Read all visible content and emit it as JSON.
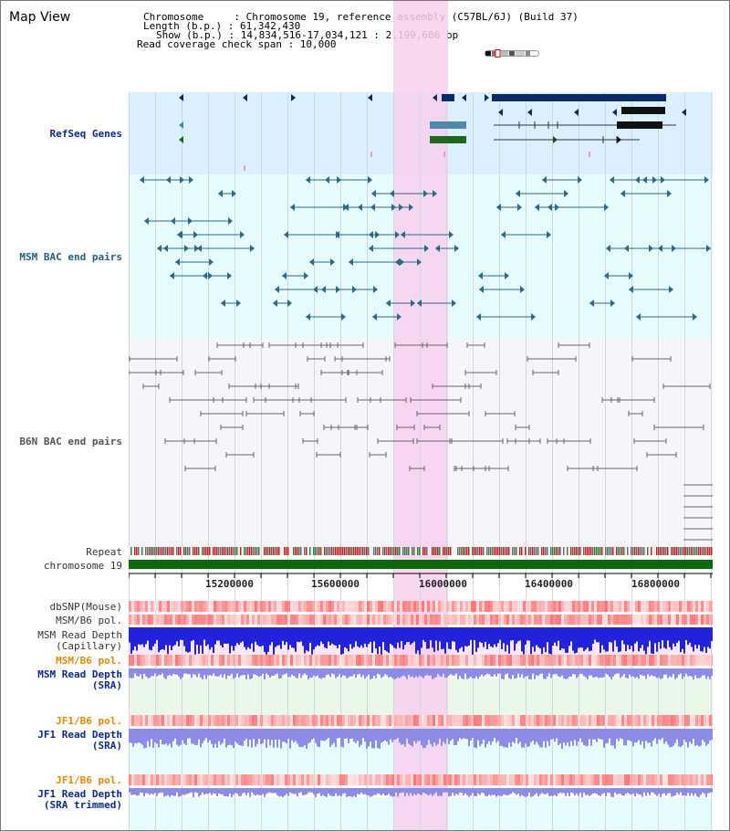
{
  "page": {
    "title": "Map View"
  },
  "header": {
    "chromosome_line": "Chromosome     : Chromosome 19, reference assembly (C57BL/6J) (Build 37)",
    "length_line": "Length (b.p.) : 61,342,430",
    "show_line": "Show (b.p.) : 14,834,516-17,034,121 : 2,199,606 bp",
    "coverage_line": "Read coverage check span : 10,000"
  },
  "tracks": {
    "refseq": "RefSeq Genes",
    "msm_bac": "MSM BAC end pairs",
    "b6n_bac": "B6N BAC end pairs",
    "repeat": "Repeat",
    "chromosome": "chromosome 19",
    "dbsnp": "dbSNP(Mouse)",
    "msm_b6_pol": "MSM/B6 pol.",
    "msm_read_depth_cap_1": "MSM Read Depth",
    "msm_read_depth_cap_2": "(Capillary)",
    "msm_b6_pol_sra": "MSM/B6 pol.",
    "msm_read_depth_sra_1": "MSM Read Depth",
    "msm_read_depth_sra_2": "(SRA)",
    "jf1_b6_pol": "JF1/B6 pol.",
    "jf1_read_depth_1": "JF1 Read Depth",
    "jf1_read_depth_2": "(SRA)",
    "jf1_b6_pol_trim": "JF1/B6 pol.",
    "jf1_read_depth_trim_1": "JF1 Read Depth",
    "jf1_read_depth_trim_2": "(SRA trimmed)"
  },
  "axis": {
    "ticks": [
      "15200000",
      "15600000",
      "16000000",
      "16400000",
      "16800000"
    ]
  },
  "colors": {
    "refseq_bg": "#dcefff",
    "msm_bg": "#e6fbfb",
    "highlight": "#f8d0ee",
    "chromosome": "#0a6a0a",
    "gene_dark": "#0a2a6a",
    "gene_green": "#1a6a1a",
    "bac_teal": "#2a6a8a",
    "bac_gray": "#666666",
    "depth_blue": "#2222dd",
    "depth_light": "#8c8ce8"
  }
}
